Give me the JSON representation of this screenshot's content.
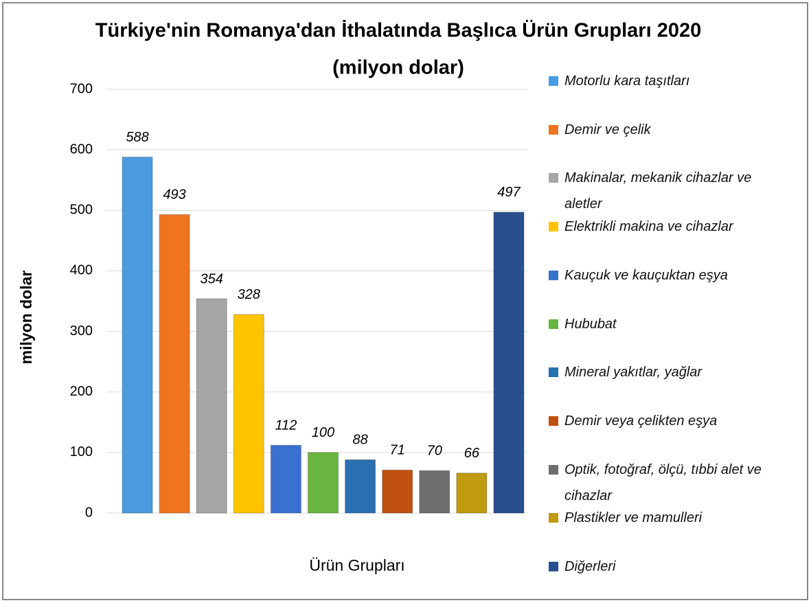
{
  "chart_data": {
    "type": "bar",
    "title": "Türkiye'nin Romanya'dan İthalatında Başlıca Ürün Grupları 2020",
    "subtitle": "(milyon dolar)",
    "y_label": "milyon dolar",
    "x_label": "Ürün Grupları",
    "categories": [
      "Motorlu kara taşıtları",
      "Demir ve çelik",
      "Makinalar, mekanik cihazlar ve aletler",
      "Elektrikli makina ve cihazlar",
      "Kauçuk ve kauçuktan eşya",
      "Hububat",
      "Mineral yakıtlar, yağlar",
      "Demir veya çelikten eşya",
      "Optik, fotoğraf, ölçü, tıbbi alet ve cihazlar",
      "Plastikler ve mamulleri",
      "Diğerleri"
    ],
    "values": [
      588,
      493,
      354,
      328,
      112,
      100,
      88,
      71,
      70,
      66,
      497
    ],
    "colors": [
      "#4a9be0",
      "#ef7420",
      "#a6a6a6",
      "#ffc400",
      "#3a70d0",
      "#6ab540",
      "#2a6fb0",
      "#c0500f",
      "#6e6e6e",
      "#c09a10",
      "#2a4f8f"
    ],
    "ylim": [
      0,
      700
    ],
    "yticks": [
      0,
      100,
      200,
      300,
      400,
      500,
      600,
      700
    ],
    "grid": true,
    "legend": "right"
  }
}
